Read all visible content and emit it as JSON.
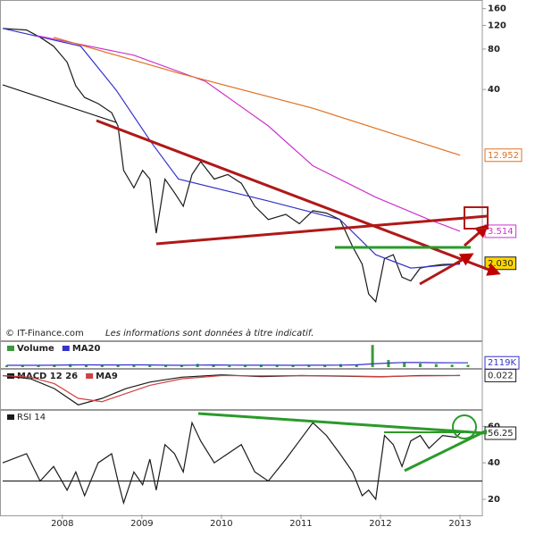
{
  "chart_data": [
    {
      "type": "line",
      "log_scale": true,
      "xlim": [
        2007.25,
        2013.28
      ],
      "ylim": [
        0.55,
        180
      ],
      "yticks": [
        40,
        80,
        120,
        160
      ],
      "source": "© IT-Finance.com",
      "note": "Les informations sont données à titre indicatif.",
      "x": [
        2007.25,
        2007.55,
        2007.72,
        2007.89,
        2008.06,
        2008.17,
        2008.28,
        2008.45,
        2008.62,
        2008.7,
        2008.77,
        2008.9,
        2009.01,
        2009.1,
        2009.18,
        2009.29,
        2009.41,
        2009.52,
        2009.63,
        2009.74,
        2009.91,
        2010.08,
        2010.25,
        2010.42,
        2010.59,
        2010.81,
        2010.98,
        2011.15,
        2011.32,
        2011.49,
        2011.65,
        2011.77,
        2011.85,
        2011.94,
        2012.05,
        2012.16,
        2012.27,
        2012.38,
        2012.5,
        2012.61,
        2012.78,
        2012.95,
        2013.0
      ],
      "series": [
        {
          "color": "#1a1a1a",
          "values": [
            114,
            111,
            98,
            84,
            64,
            42.5,
            34.9,
            31.4,
            26.9,
            21.4,
            10,
            7.4,
            10,
            8.6,
            3.4,
            8.6,
            6.8,
            5.4,
            9.3,
            11.6,
            8.6,
            9.3,
            8.0,
            5.4,
            4.3,
            4.7,
            4.0,
            5.0,
            4.8,
            4.3,
            2.7,
            2.0,
            1.2,
            1.05,
            2.2,
            2.35,
            1.6,
            1.5,
            1.87,
            1.93,
            1.99,
            2.0,
            2.03
          ],
          "last": {
            "value": 2.03,
            "label": "2.030"
          },
          "last_fill": "#ffd700"
        },
        {
          "color": "#3333cc",
          "x": [
            2007.25,
            2008.23,
            2008.68,
            2009.13,
            2009.46,
            2010.59,
            2011.49,
            2011.94,
            2012.38,
            2013.0
          ],
          "values": [
            114,
            84,
            39.4,
            15.8,
            8.6,
            5.9,
            4.3,
            2.35,
            1.87,
            2.0
          ]
        },
        {
          "color": "#cc33cc",
          "x": [
            2007.67,
            2008.9,
            2009.8,
            2010.59,
            2011.15,
            2011.94,
            2012.61,
            2013.0
          ],
          "values": [
            101,
            72,
            46,
            21.4,
            10.8,
            6.3,
            4.3,
            3.514
          ],
          "last": 3.514,
          "last_fill": "#ffffff"
        },
        {
          "color": "#e07020",
          "x": [
            2007.89,
            2009.46,
            2011.15,
            2013.0
          ],
          "values": [
            98,
            53,
            29,
            12.952
          ],
          "last": 12.952,
          "last_fill": "#ffffff"
        }
      ]
    },
    {
      "type": "bar",
      "xlim": [
        2007.25,
        2013.28
      ],
      "ylim": [
        0,
        12000
      ],
      "x": [
        2007.3,
        2007.5,
        2007.7,
        2007.9,
        2008.1,
        2008.3,
        2008.5,
        2008.7,
        2008.9,
        2009.1,
        2009.3,
        2009.5,
        2009.7,
        2009.9,
        2010.1,
        2010.3,
        2010.5,
        2010.7,
        2010.9,
        2011.1,
        2011.3,
        2011.5,
        2011.7,
        2011.9,
        2012.1,
        2012.3,
        2012.5,
        2012.7,
        2012.9,
        2013.1
      ],
      "series": [
        {
          "name": "Volume",
          "color": "#3a9a3a",
          "type": "bar",
          "values": [
            800,
            900,
            700,
            1200,
            1500,
            1000,
            900,
            1300,
            1100,
            800,
            700,
            900,
            1600,
            1000,
            800,
            900,
            1200,
            700,
            900,
            1000,
            800,
            1500,
            1400,
            11000,
            3500,
            2500,
            1800,
            1500,
            1200,
            1100
          ]
        },
        {
          "name": "MA20",
          "color": "#3333cc",
          "type": "line",
          "values": [
            900,
            900,
            900,
            950,
            1050,
            1100,
            1050,
            1050,
            1100,
            1050,
            950,
            900,
            1000,
            1050,
            1000,
            950,
            950,
            950,
            900,
            950,
            950,
            1000,
            1100,
            1600,
            2000,
            2300,
            2250,
            2200,
            2150,
            2119
          ],
          "last": {
            "value": 2119,
            "label": "2119K"
          },
          "last_fill": "#ffffff"
        }
      ]
    },
    {
      "type": "line",
      "xlim": [
        2007.25,
        2013.28
      ],
      "ylim": [
        -10,
        1.5
      ],
      "x": [
        2007.25,
        2007.6,
        2007.9,
        2008.2,
        2008.5,
        2008.8,
        2009.1,
        2009.5,
        2010,
        2010.5,
        2011,
        2011.5,
        2012,
        2012.5,
        2013
      ],
      "series": [
        {
          "name": "MACD 12 26",
          "color": "#1a1a1a",
          "values": [
            0,
            -1,
            -4,
            -9,
            -7,
            -4,
            -2,
            -0.5,
            0.2,
            -0.3,
            0,
            -0.2,
            -0.4,
            0,
            0.022
          ],
          "last": 0.022,
          "last_fill": "#ffffff"
        },
        {
          "name": "MA9",
          "color": "#d04040",
          "values": [
            0,
            -0.5,
            -2.5,
            -7,
            -8,
            -5.5,
            -3,
            -1,
            0,
            -0.1,
            0,
            -0.1,
            -0.3,
            -0.1,
            0
          ]
        }
      ]
    },
    {
      "type": "line",
      "title": "RSI 14",
      "xlim": [
        2007.25,
        2013.28
      ],
      "ylim": [
        11.7,
        68
      ],
      "yticks": [
        20,
        40,
        60
      ],
      "hline": 30,
      "xticks": [
        2008,
        2009,
        2010,
        2011,
        2012,
        2013
      ],
      "x": [
        2007.25,
        2007.55,
        2007.72,
        2007.89,
        2008.06,
        2008.17,
        2008.28,
        2008.45,
        2008.62,
        2008.7,
        2008.77,
        2008.9,
        2009.01,
        2009.1,
        2009.18,
        2009.29,
        2009.41,
        2009.52,
        2009.63,
        2009.74,
        2009.91,
        2010.08,
        2010.25,
        2010.42,
        2010.59,
        2010.81,
        2010.98,
        2011.15,
        2011.32,
        2011.49,
        2011.65,
        2011.77,
        2011.85,
        2011.94,
        2012.05,
        2012.16,
        2012.27,
        2012.38,
        2012.5,
        2012.61,
        2012.78,
        2012.95,
        2013.0
      ],
      "series": [
        {
          "color": "#1a1a1a",
          "values": [
            40,
            45,
            30,
            38,
            25,
            35,
            22,
            40,
            45,
            30,
            18,
            35,
            28,
            42,
            25,
            50,
            45,
            35,
            62,
            52,
            40,
            45,
            50,
            35,
            30,
            42,
            52,
            62,
            55,
            45,
            35,
            22,
            25,
            20,
            55,
            50,
            38,
            52,
            55,
            48,
            55,
            54,
            56.25
          ],
          "last": 56.25,
          "last_fill": "#ffffff"
        }
      ]
    }
  ]
}
